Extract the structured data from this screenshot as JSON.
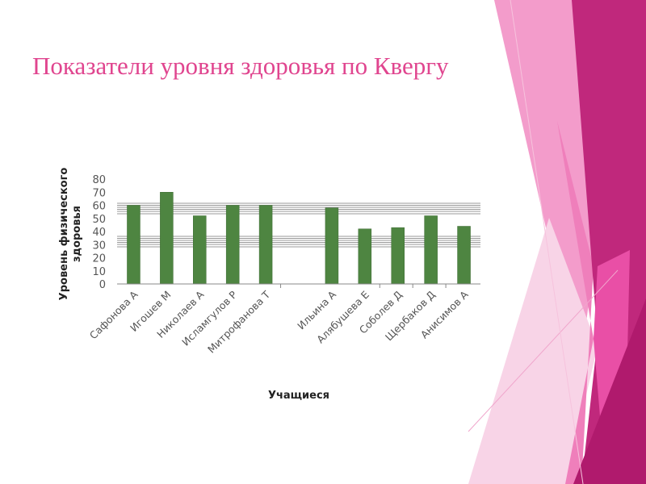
{
  "slide": {
    "title": "Показатели уровня здоровья по Квергу"
  },
  "colors": {
    "bar": "#4e8541",
    "title": "#e0458f"
  },
  "chart_data": {
    "type": "bar",
    "title": "",
    "xlabel": "Учащиеся",
    "ylabel_lines": [
      "Уровень физического",
      "здоровья"
    ],
    "categories": [
      "Сафонова А",
      "Игошев М",
      "Николаев А",
      "Исламгулов Р",
      "Митрофанова Т",
      "",
      "Ильина А",
      "Алябушева Е",
      "Соболев Д",
      "Щербаков Д",
      "Анисимов А"
    ],
    "values": [
      60,
      70,
      52,
      60,
      60,
      null,
      58,
      42,
      43,
      52,
      44
    ],
    "ylim": [
      0,
      80
    ],
    "yticks": [
      0,
      10,
      20,
      30,
      40,
      50,
      60,
      70,
      80
    ],
    "grid": false,
    "legend": "none"
  }
}
